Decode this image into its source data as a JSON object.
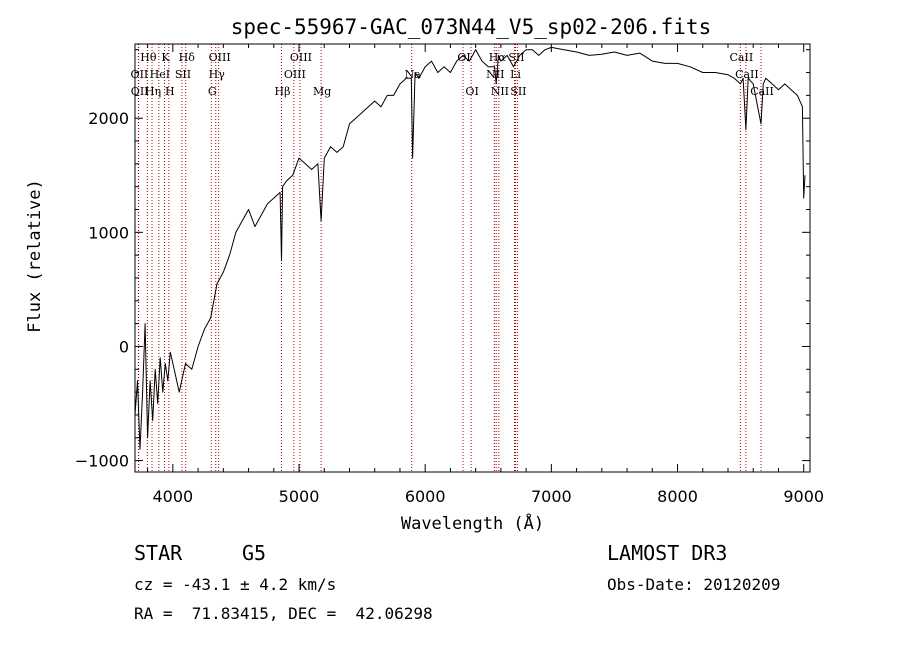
{
  "chart_data": {
    "type": "line",
    "title": "spec-55967-GAC_073N44_V5_sp02-206.fits",
    "xlabel": "Wavelength (Å)",
    "ylabel": "Flux (relative)",
    "xlim": [
      3700,
      9050
    ],
    "ylim": [
      -1100,
      2650
    ],
    "x_ticks": [
      4000,
      5000,
      6000,
      7000,
      8000,
      9000
    ],
    "y_ticks": [
      -1000,
      0,
      1000,
      2000
    ],
    "grid": false,
    "series": [
      {
        "name": "spectrum",
        "x": [
          3700,
          3720,
          3740,
          3760,
          3780,
          3800,
          3820,
          3840,
          3860,
          3880,
          3900,
          3920,
          3940,
          3960,
          3980,
          4000,
          4050,
          4100,
          4150,
          4200,
          4250,
          4300,
          4350,
          4400,
          4450,
          4500,
          4550,
          4600,
          4650,
          4700,
          4750,
          4800,
          4850,
          4861,
          4870,
          4900,
          4950,
          5000,
          5050,
          5100,
          5150,
          5175,
          5200,
          5250,
          5300,
          5350,
          5400,
          5450,
          5500,
          5550,
          5600,
          5650,
          5700,
          5750,
          5800,
          5850,
          5890,
          5900,
          5920,
          5950,
          6000,
          6050,
          6100,
          6150,
          6200,
          6250,
          6300,
          6350,
          6400,
          6450,
          6500,
          6550,
          6563,
          6580,
          6600,
          6650,
          6700,
          6750,
          6800,
          6850,
          6900,
          6950,
          7000,
          7100,
          7200,
          7300,
          7400,
          7500,
          7600,
          7700,
          7800,
          7900,
          8000,
          8100,
          8200,
          8300,
          8400,
          8450,
          8498,
          8520,
          8542,
          8560,
          8600,
          8662,
          8680,
          8700,
          8750,
          8800,
          8850,
          8900,
          8950,
          8990,
          9000,
          9010
        ],
        "y": [
          -600,
          -300,
          -900,
          -400,
          200,
          -800,
          -300,
          -650,
          -200,
          -500,
          -100,
          -400,
          -150,
          -300,
          -50,
          -150,
          -400,
          -150,
          -200,
          0,
          150,
          250,
          550,
          650,
          800,
          1000,
          1100,
          1200,
          1050,
          1150,
          1250,
          1300,
          1350,
          750,
          1400,
          1450,
          1500,
          1650,
          1600,
          1550,
          1600,
          1100,
          1650,
          1750,
          1700,
          1750,
          1950,
          2000,
          2050,
          2100,
          2150,
          2100,
          2200,
          2200,
          2300,
          2350,
          2350,
          1650,
          2400,
          2350,
          2450,
          2500,
          2400,
          2450,
          2400,
          2500,
          2550,
          2500,
          2600,
          2500,
          2450,
          2450,
          2300,
          2550,
          2500,
          2550,
          2450,
          2550,
          2600,
          2600,
          2550,
          2600,
          2620,
          2600,
          2580,
          2550,
          2560,
          2580,
          2550,
          2570,
          2500,
          2480,
          2480,
          2450,
          2400,
          2400,
          2380,
          2350,
          2300,
          2350,
          1900,
          2350,
          2300,
          1950,
          2300,
          2350,
          2300,
          2250,
          2300,
          2250,
          2200,
          2100,
          1300,
          1500
        ]
      }
    ],
    "lines": [
      {
        "label": "Hθ",
        "x": 3798,
        "row": 0
      },
      {
        "label": "OII",
        "x": 3727,
        "row": 1
      },
      {
        "label": "OII",
        "x": 3729,
        "row": 2
      },
      {
        "label": "Hη",
        "x": 3835,
        "row": 2
      },
      {
        "label": "K",
        "x": 3934,
        "row": 0
      },
      {
        "label": "HeI",
        "x": 3889,
        "row": 1
      },
      {
        "label": "H",
        "x": 3968,
        "row": 2
      },
      {
        "label": "SII",
        "x": 4072,
        "row": 1
      },
      {
        "label": "Hδ",
        "x": 4102,
        "row": 0
      },
      {
        "label": "OIII",
        "x": 4363,
        "row": 0
      },
      {
        "label": "Hγ",
        "x": 4340,
        "row": 1
      },
      {
        "label": "G",
        "x": 4305,
        "row": 2
      },
      {
        "label": "Hβ",
        "x": 4861,
        "row": 2
      },
      {
        "label": "OIII",
        "x": 5007,
        "row": 0
      },
      {
        "label": "OIII",
        "x": 4959,
        "row": 1
      },
      {
        "label": "Mg",
        "x": 5175,
        "row": 2
      },
      {
        "label": "Na",
        "x": 5893,
        "row": 1
      },
      {
        "label": "OI",
        "x": 6300,
        "row": 0
      },
      {
        "label": "OI",
        "x": 6364,
        "row": 2
      },
      {
        "label": "Hα",
        "x": 6563,
        "row": 0
      },
      {
        "label": "SII",
        "x": 6716,
        "row": 0
      },
      {
        "label": "NII",
        "x": 6548,
        "row": 1
      },
      {
        "label": "Li",
        "x": 6708,
        "row": 1
      },
      {
        "label": "NII",
        "x": 6584,
        "row": 2
      },
      {
        "label": "SII",
        "x": 6731,
        "row": 2
      },
      {
        "label": "CaII",
        "x": 8498,
        "row": 0
      },
      {
        "label": "CaII",
        "x": 8542,
        "row": 1
      },
      {
        "label": "CaII",
        "x": 8662,
        "row": 2
      }
    ]
  },
  "info": {
    "class": "STAR",
    "subclass": "G5",
    "survey": "LAMOST DR3",
    "cz": "cz = -43.1 ± 4.2 km/s",
    "obs_date": "Obs-Date: 20120209",
    "radec": "RA =  71.83415, DEC =  42.06298"
  }
}
